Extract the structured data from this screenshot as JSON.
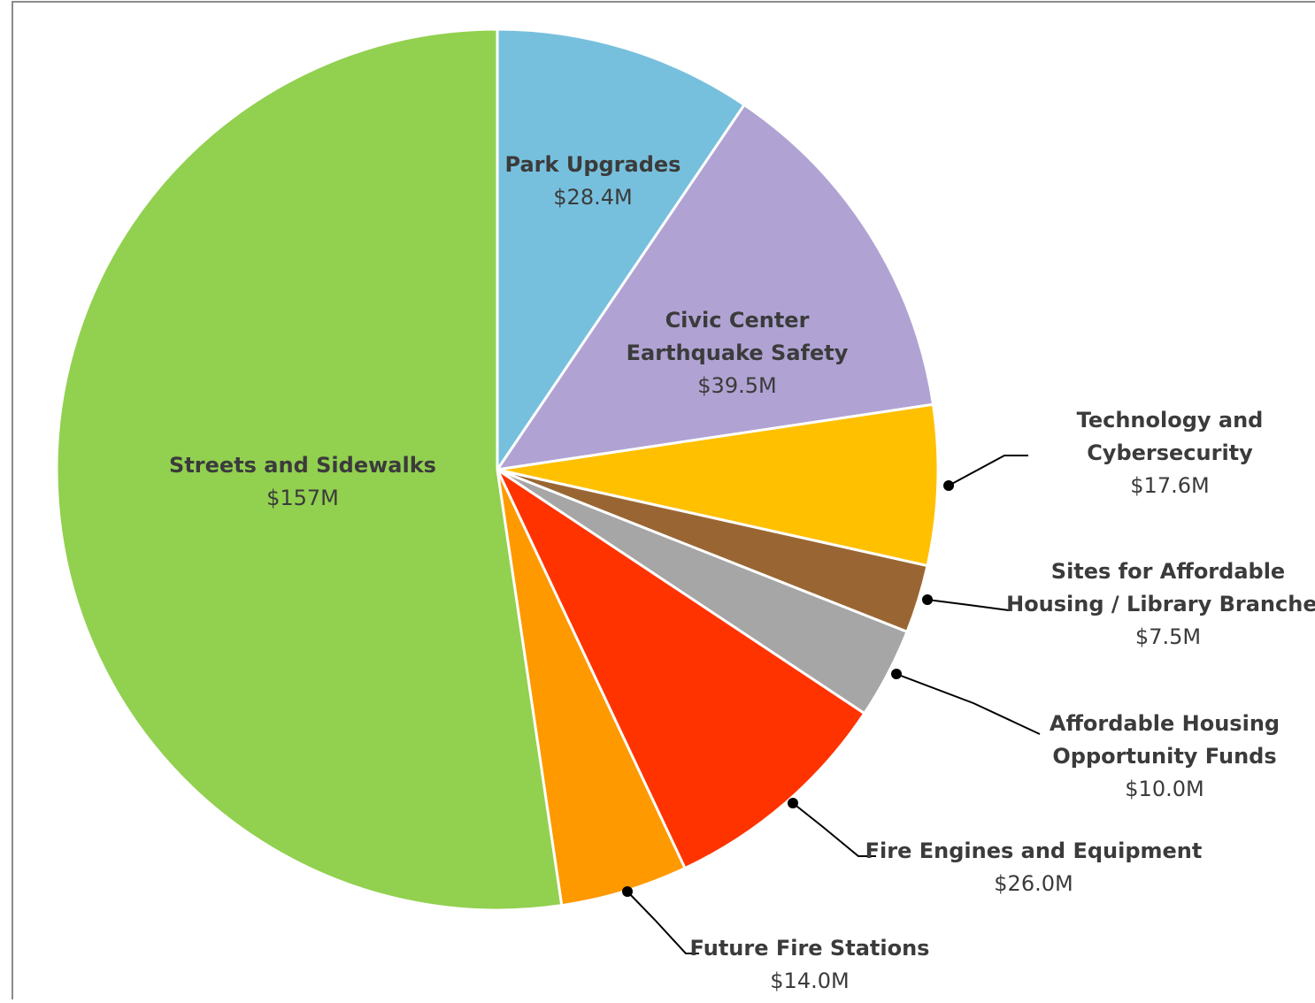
{
  "chart_data": {
    "type": "pie",
    "title": "",
    "slices": [
      {
        "label": "Park Upgrades",
        "value": 28.4,
        "display": "$28.4M",
        "color": "#77c0dd",
        "lines": [
          "Park Upgrades"
        ]
      },
      {
        "label": "Civic Center Earthquake Safety",
        "value": 39.5,
        "display": "$39.5M",
        "color": "#b0a3d3",
        "lines": [
          "Civic Center",
          "Earthquake Safety"
        ]
      },
      {
        "label": "Technology and Cybersecurity",
        "value": 17.6,
        "display": "$17.6M",
        "color": "#ffc000",
        "lines": [
          "Technology and",
          "Cybersecurity"
        ]
      },
      {
        "label": "Sites for Affordable Housing / Library Branches",
        "value": 7.5,
        "display": "$7.5M",
        "color": "#996633",
        "lines": [
          "Sites for Affordable",
          "Housing / Library Branches"
        ]
      },
      {
        "label": "Affordable Housing Opportunity Funds",
        "value": 10.0,
        "display": "$10.0M",
        "color": "#a6a6a6",
        "lines": [
          "Affordable Housing",
          "Opportunity Funds"
        ]
      },
      {
        "label": "Fire Engines and Equipment",
        "value": 26.0,
        "display": "$26.0M",
        "color": "#ff3300",
        "lines": [
          "Fire Engines and Equipment"
        ]
      },
      {
        "label": "Future Fire Stations",
        "value": 14.0,
        "display": "$14.0M",
        "color": "#ff9900",
        "lines": [
          "Future Fire Stations"
        ]
      },
      {
        "label": "Streets and Sidewalks",
        "value": 157,
        "display": "$157M",
        "color": "#92d050",
        "lines": [
          "Streets and Sidewalks"
        ]
      }
    ]
  }
}
